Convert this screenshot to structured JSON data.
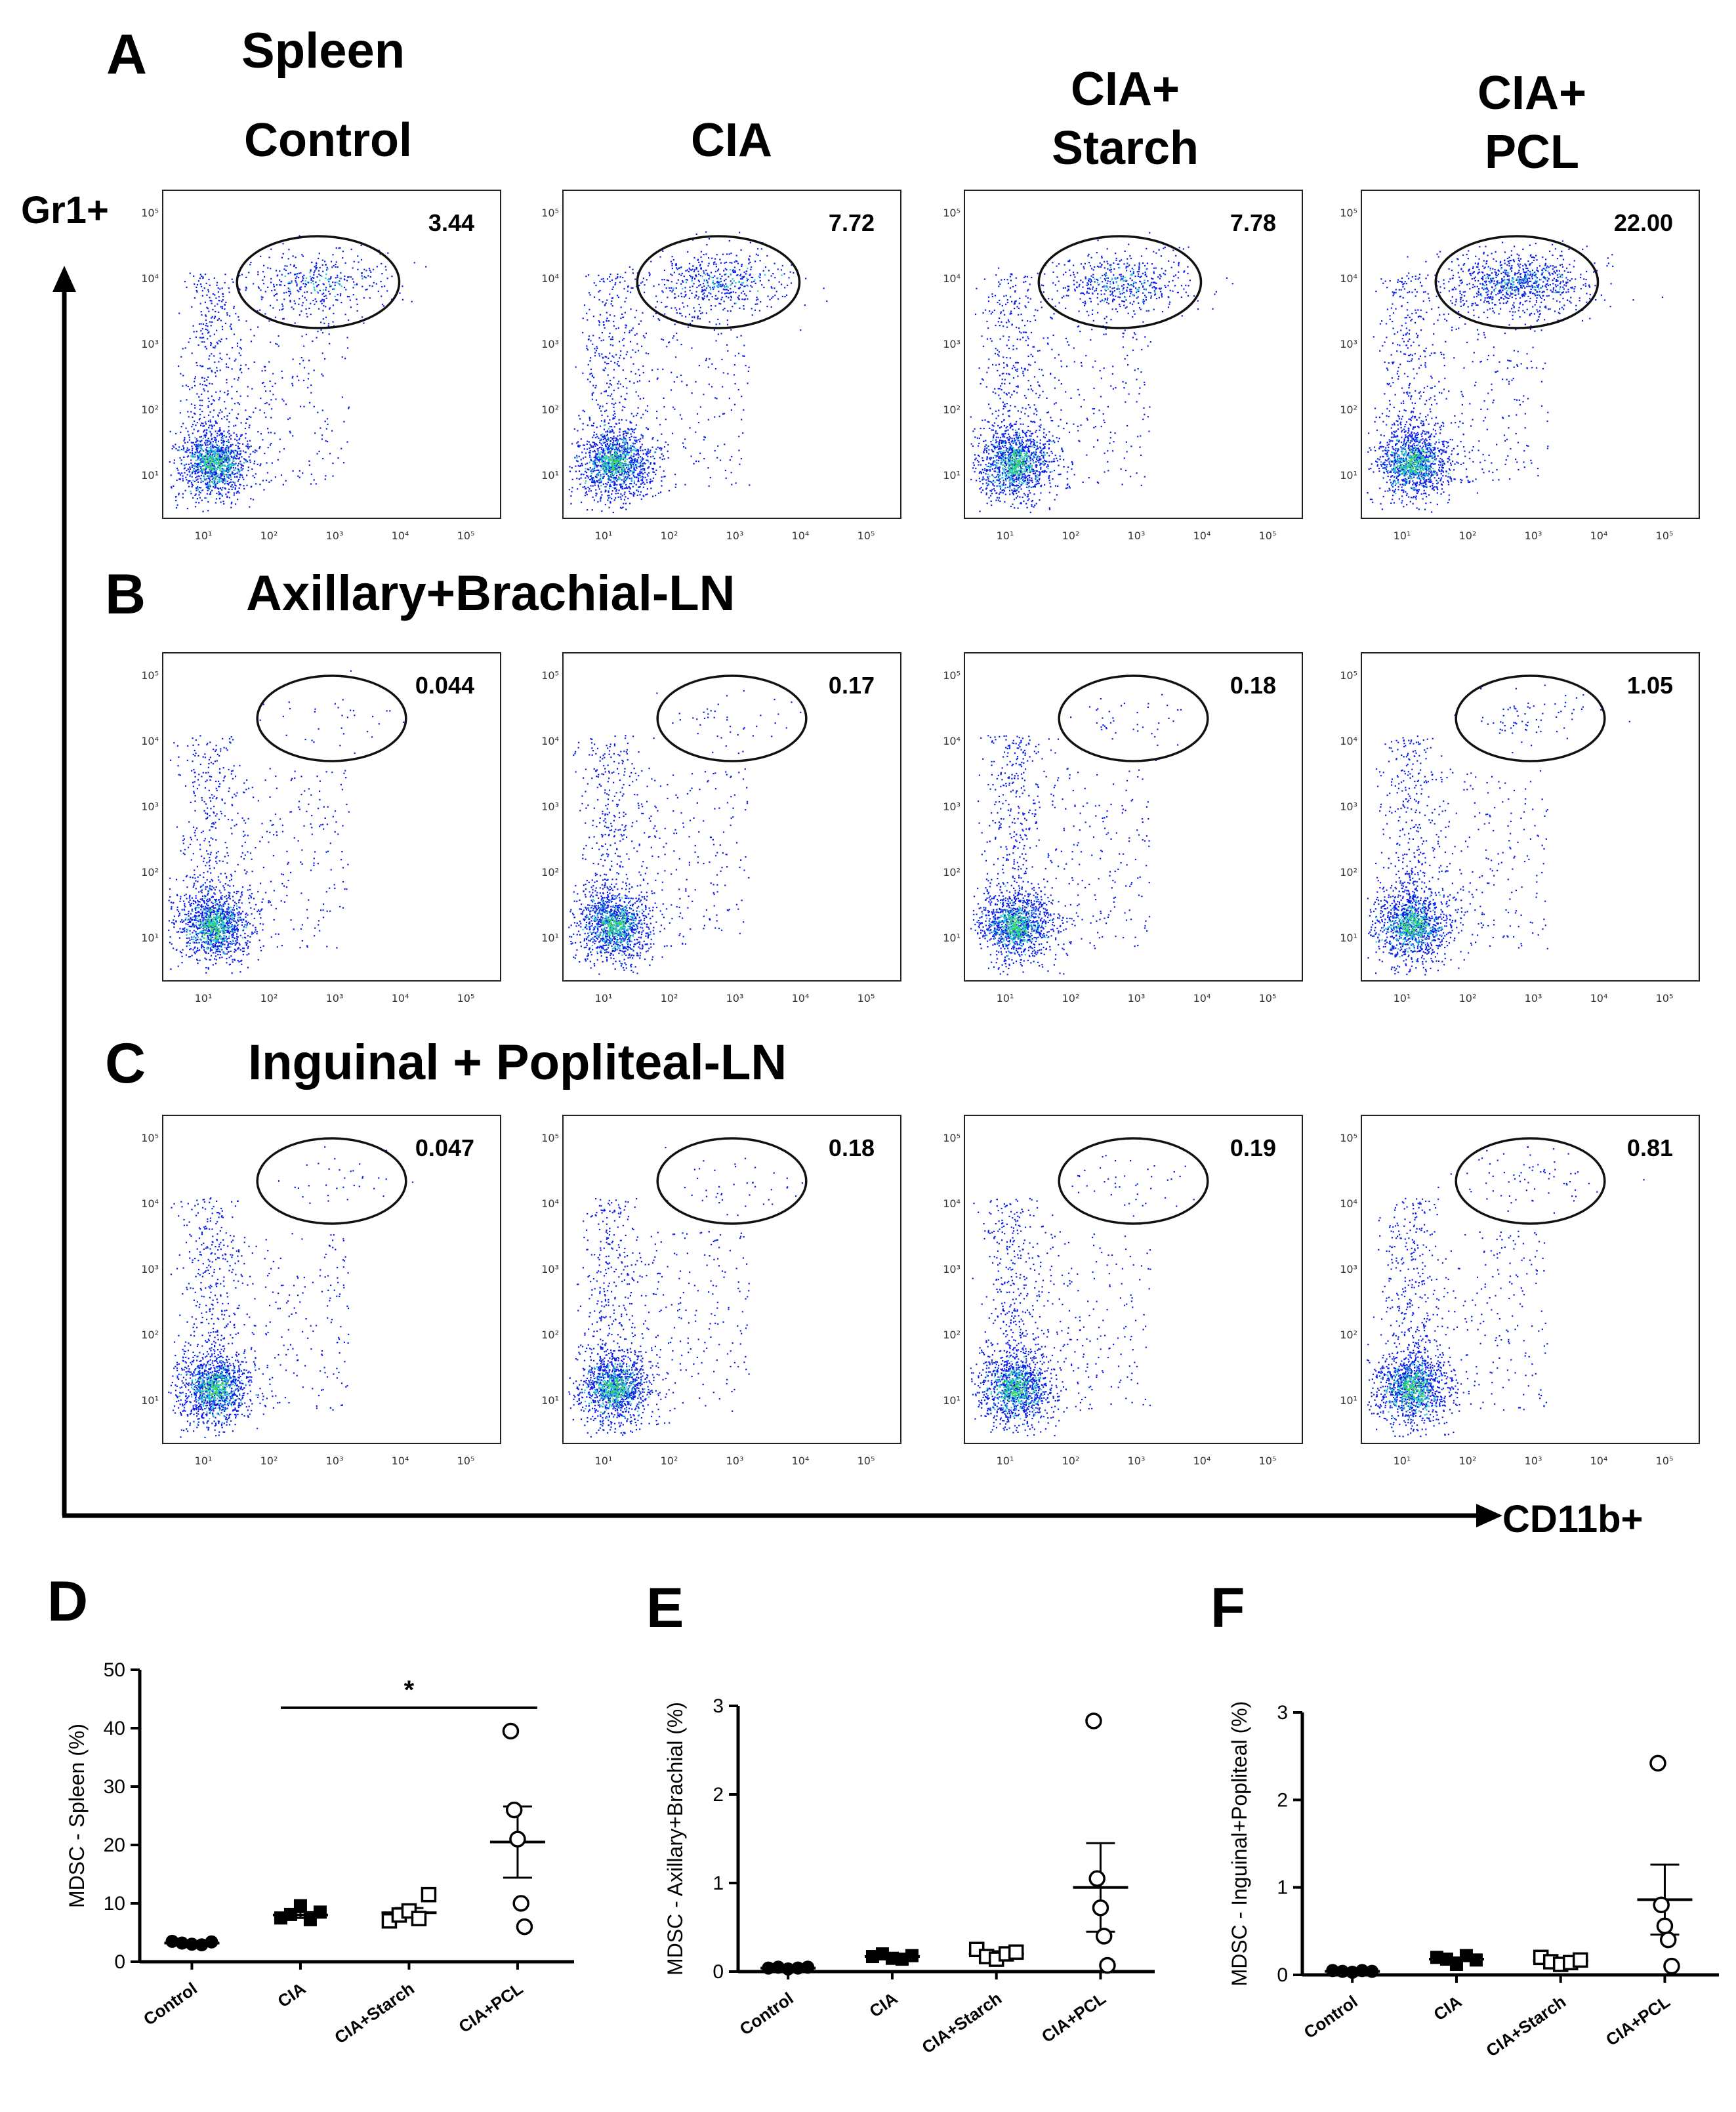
{
  "figure": {
    "panel_letters": {
      "A": "A",
      "B": "B",
      "C": "C",
      "D": "D",
      "E": "E",
      "F": "F"
    },
    "section_titles": {
      "A": "Spleen",
      "B": "Axillary+Brachial-LN",
      "C": "Inguinal + Popliteal-LN"
    },
    "column_headers": [
      [
        "Control"
      ],
      [
        "CIA"
      ],
      [
        "CIA+",
        "Starch"
      ],
      [
        "CIA+",
        "PCL"
      ]
    ],
    "y_axis_label": "Gr1+",
    "x_axis_label": "CD11b+",
    "flow_tick_labels": [
      "10¹",
      "10²",
      "10³",
      "10⁴",
      "10⁵"
    ]
  },
  "colors": {
    "dot_blue": "#0a1ee6",
    "dot_cyan": "#1ec8d2",
    "dot_green": "#3cdc5a",
    "gate": "#111111",
    "axis": "#000000"
  },
  "flow_panels": {
    "rows": [
      {
        "name": "spleen",
        "gate_values": [
          "3.44",
          "7.72",
          "7.78",
          "22.00"
        ]
      },
      {
        "name": "axillary-brachial-ln",
        "gate_values": [
          "0.044",
          "0.17",
          "0.18",
          "1.05"
        ]
      },
      {
        "name": "inguinal-popliteal-ln",
        "gate_values": [
          "0.047",
          "0.18",
          "0.19",
          "0.81"
        ]
      }
    ]
  },
  "chart_data": [
    {
      "type": "scatter",
      "panel": "D",
      "title": "",
      "ylabel": "MDSC - Spleen (%)",
      "xlabel": "",
      "ylim": [
        0,
        50
      ],
      "yticks": [
        0,
        10,
        20,
        30,
        40,
        50
      ],
      "categories": [
        "Control",
        "CIA",
        "CIA+Starch",
        "CIA+PCL"
      ],
      "markers": [
        "filled-circle",
        "filled-square",
        "open-square",
        "open-circle"
      ],
      "points": [
        [
          3.5,
          3.2,
          3.0,
          2.9,
          3.4
        ],
        [
          7.5,
          8.1,
          9.6,
          7.2,
          8.5
        ],
        [
          7.0,
          8.0,
          8.7,
          7.4,
          11.5
        ],
        [
          39.5,
          26.0,
          21.0,
          10.0,
          6.0
        ]
      ],
      "mean": [
        3.2,
        8.0,
        8.4,
        20.5
      ],
      "sem": [
        0.2,
        0.5,
        0.8,
        6.1
      ],
      "significance": [
        {
          "from": "CIA",
          "to": "CIA+PCL",
          "label": "*",
          "y": 43.5
        }
      ]
    },
    {
      "type": "scatter",
      "panel": "E",
      "title": "",
      "ylabel": "MDSC - Axillary+Brachial (%)",
      "xlabel": "",
      "ylim": [
        0,
        3
      ],
      "yticks": [
        0,
        1,
        2,
        3
      ],
      "categories": [
        "Control",
        "CIA",
        "CIA+Starch",
        "CIA+PCL"
      ],
      "markers": [
        "filled-circle",
        "filled-square",
        "open-square",
        "open-circle"
      ],
      "points": [
        [
          0.04,
          0.05,
          0.03,
          0.04,
          0.05
        ],
        [
          0.17,
          0.2,
          0.15,
          0.14,
          0.18
        ],
        [
          0.25,
          0.17,
          0.14,
          0.2,
          0.22
        ],
        [
          2.83,
          1.05,
          0.72,
          0.4,
          0.07
        ]
      ],
      "mean": [
        0.04,
        0.17,
        0.2,
        0.95
      ],
      "sem": [
        0.01,
        0.02,
        0.03,
        0.5
      ],
      "significance": []
    },
    {
      "type": "scatter",
      "panel": "F",
      "title": "",
      "ylabel": "MDSC - Inguinal+Popliteal (%)",
      "xlabel": "",
      "ylim": [
        0,
        3
      ],
      "yticks": [
        0,
        1,
        2,
        3
      ],
      "categories": [
        "Control",
        "CIA",
        "CIA+Starch",
        "CIA+PCL"
      ],
      "markers": [
        "filled-circle",
        "filled-square",
        "open-square",
        "open-circle"
      ],
      "points": [
        [
          0.05,
          0.04,
          0.03,
          0.05,
          0.04
        ],
        [
          0.2,
          0.18,
          0.12,
          0.22,
          0.17
        ],
        [
          0.2,
          0.15,
          0.12,
          0.14,
          0.17
        ],
        [
          2.42,
          0.8,
          0.56,
          0.4,
          0.1
        ]
      ],
      "mean": [
        0.04,
        0.18,
        0.16,
        0.86
      ],
      "sem": [
        0.01,
        0.02,
        0.02,
        0.4
      ],
      "significance": []
    }
  ]
}
